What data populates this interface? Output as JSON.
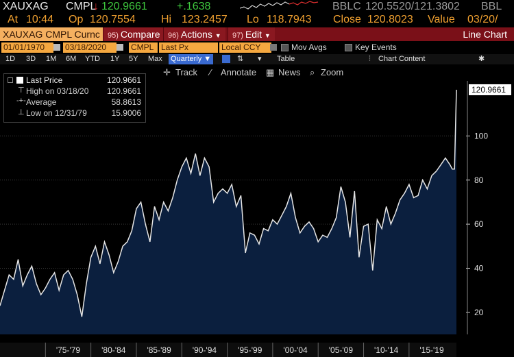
{
  "header": {
    "ticker": "XAUXAG",
    "field": "CMPL",
    "arrow": "↓",
    "last": "120.9661",
    "change": "+.1638",
    "bbid_label": "BBLC",
    "bid_ask": "120.5520/121.3802",
    "src": "BBL",
    "at_label": "At",
    "time": "10:44",
    "op_label": "Op",
    "open": "120.7554",
    "hi_label": "Hi",
    "high": "123.2457",
    "lo_label": "Lo",
    "low": "118.7943",
    "close_label": "Close",
    "close": "120.8023",
    "value_label": "Value",
    "value_date": "03/20/"
  },
  "toolbar": {
    "security": "XAUXAG CMPL Curnc",
    "compare_num": "95)",
    "compare": "Compare",
    "actions_num": "96)",
    "actions": "Actions",
    "edit_num": "97)",
    "edit": "Edit",
    "chart_title": "Line Chart"
  },
  "params": {
    "start": "01/01/1970",
    "end": "03/18/2020",
    "source": "CMPL",
    "price_field": "Last Px",
    "currency": "Local CCY",
    "mov_avgs": "Mov Avgs",
    "key_events": "Key Events"
  },
  "ranges": {
    "items": [
      "1D",
      "3D",
      "1M",
      "6M",
      "YTD",
      "1Y",
      "5Y",
      "Max"
    ],
    "period": "Quarterly ▼",
    "table": "Table",
    "chart_content": "Chart Content"
  },
  "tools": {
    "track": "Track",
    "annotate": "Annotate",
    "news": "News",
    "zoom": "Zoom"
  },
  "legend": {
    "last_label": "Last Price",
    "last_val": "120.9661",
    "high_label": "High on 03/18/20",
    "high_val": "120.9661",
    "avg_label": "Average",
    "avg_val": "58.8613",
    "low_label": "Low on 12/31/79",
    "low_val": "15.9006"
  },
  "colors": {
    "area": "#0b1f3e",
    "line": "#e6e6e6",
    "accent": "#f0a030",
    "bar": "#7a1018"
  },
  "chart_data": {
    "type": "area",
    "x_start": "1970-01-01",
    "x_end": "2020-03-18",
    "ylim": [
      10,
      125
    ],
    "yticks": [
      20,
      40,
      60,
      80,
      100
    ],
    "xtick_labels": [
      "'75-'79",
      "'80-'84",
      "'85-'89",
      "'90-'94",
      "'95-'99",
      "'00-'04",
      "'05-'09",
      "'10-'14",
      "'15-'19"
    ],
    "last_value_label": "120.9661",
    "grid": true,
    "series": [
      {
        "x": [
          1970.0,
          1970.5,
          1971.0,
          1971.5,
          1972.0,
          1972.5,
          1973.0,
          1973.5,
          1974.0,
          1974.5,
          1975.0,
          1975.5,
          1976.0,
          1976.5,
          1977.0,
          1977.5,
          1978.0,
          1978.5,
          1979.0,
          1979.5,
          1980.0,
          1980.5,
          1981.0,
          1981.5,
          1982.0,
          1982.5,
          1983.0,
          1983.5,
          1984.0,
          1984.5,
          1985.0,
          1985.5,
          1986.0,
          1986.5,
          1987.0,
          1987.5,
          1988.0,
          1988.5,
          1989.0,
          1989.5,
          1990.0,
          1990.5,
          1991.0,
          1991.5,
          1992.0,
          1992.5,
          1993.0,
          1993.5,
          1994.0,
          1994.5,
          1995.0,
          1995.5,
          1996.0,
          1996.5,
          1997.0,
          1997.5,
          1998.0,
          1998.5,
          1999.0,
          1999.5,
          2000.0,
          2000.5,
          2001.0,
          2001.5,
          2002.0,
          2002.5,
          2003.0,
          2003.5,
          2004.0,
          2004.5,
          2005.0,
          2005.5,
          2006.0,
          2006.5,
          2007.0,
          2007.5,
          2008.0,
          2008.5,
          2009.0,
          2009.5,
          2010.0,
          2010.5,
          2011.0,
          2011.5,
          2012.0,
          2012.5,
          2013.0,
          2013.5,
          2014.0,
          2014.5,
          2015.0,
          2015.5,
          2016.0,
          2016.5,
          2017.0,
          2017.5,
          2018.0,
          2018.5,
          2019.0,
          2019.5,
          2019.75,
          2020.0,
          2020.21
        ],
        "y": [
          23,
          30,
          37,
          35,
          44,
          32,
          37,
          41,
          33,
          28,
          31,
          35,
          38,
          30,
          37,
          39,
          35,
          28,
          18,
          33,
          45,
          50,
          42,
          52,
          46,
          38,
          43,
          50,
          52,
          57,
          67,
          70,
          60,
          52,
          68,
          62,
          70,
          66,
          72,
          80,
          86,
          90,
          83,
          92,
          82,
          90,
          86,
          70,
          74,
          76,
          74,
          78,
          68,
          73,
          47,
          56,
          55,
          51,
          58,
          57,
          62,
          60,
          64,
          68,
          74,
          63,
          56,
          59,
          61,
          58,
          52,
          55,
          54,
          58,
          63,
          77,
          70,
          54,
          75,
          45,
          59,
          60,
          39,
          62,
          58,
          68,
          60,
          65,
          71,
          74,
          78,
          72,
          73,
          80,
          76,
          82,
          84,
          87,
          90,
          87,
          85,
          85,
          120.97
        ]
      }
    ]
  }
}
